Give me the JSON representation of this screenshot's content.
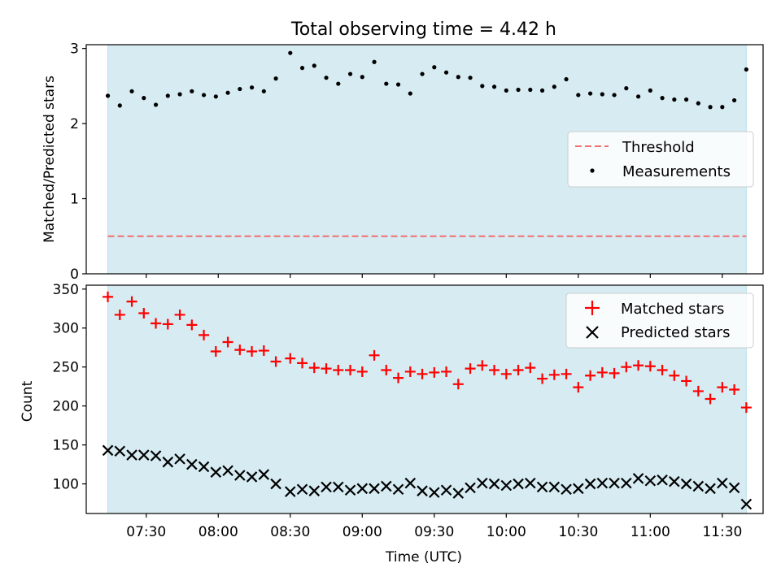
{
  "figure": {
    "title": "Total observing time = 4.42 h"
  },
  "chart_data": [
    {
      "type": "scatter",
      "panel": "top",
      "ylabel": "Matched/Predicted stars",
      "xlabel": "",
      "x_range": [
        "07:05",
        "11:47"
      ],
      "ylim": [
        0,
        3.05
      ],
      "yticks": [
        0,
        1,
        2,
        3
      ],
      "shaded_span": [
        "07:14",
        "11:40"
      ],
      "threshold": 0.5,
      "legend_position": "center-right",
      "legend": [
        "Threshold",
        "Measurements"
      ],
      "x": [
        "07:14",
        "07:19",
        "07:24",
        "07:29",
        "07:34",
        "07:39",
        "07:44",
        "07:49",
        "07:54",
        "07:59",
        "08:04",
        "08:09",
        "08:14",
        "08:19",
        "08:24",
        "08:30",
        "08:35",
        "08:40",
        "08:45",
        "08:50",
        "08:55",
        "09:00",
        "09:05",
        "09:10",
        "09:15",
        "09:20",
        "09:25",
        "09:30",
        "09:35",
        "09:40",
        "09:45",
        "09:50",
        "09:55",
        "10:00",
        "10:05",
        "10:10",
        "10:15",
        "10:20",
        "10:25",
        "10:30",
        "10:35",
        "10:40",
        "10:45",
        "10:50",
        "10:55",
        "11:00",
        "11:05",
        "11:10",
        "11:15",
        "11:20",
        "11:25",
        "11:30",
        "11:35",
        "11:40"
      ],
      "series": [
        {
          "name": "Measurements",
          "values": [
            2.37,
            2.24,
            2.43,
            2.34,
            2.25,
            2.37,
            2.39,
            2.43,
            2.38,
            2.36,
            2.41,
            2.46,
            2.48,
            2.43,
            2.6,
            2.94,
            2.74,
            2.77,
            2.61,
            2.53,
            2.66,
            2.62,
            2.82,
            2.53,
            2.52,
            2.4,
            2.66,
            2.75,
            2.68,
            2.62,
            2.61,
            2.5,
            2.49,
            2.44,
            2.45,
            2.45,
            2.44,
            2.49,
            2.59,
            2.38,
            2.4,
            2.39,
            2.38,
            2.47,
            2.36,
            2.44,
            2.34,
            2.32,
            2.32,
            2.27,
            2.22,
            2.22,
            2.31,
            2.72
          ]
        }
      ]
    },
    {
      "type": "scatter",
      "panel": "bottom",
      "ylabel": "Count",
      "xlabel": "Time (UTC)",
      "x_range": [
        "07:05",
        "11:47"
      ],
      "ylim": [
        62,
        355
      ],
      "yticks": [
        100,
        150,
        200,
        250,
        300,
        350
      ],
      "xticks": [
        "07:30",
        "08:00",
        "08:30",
        "09:00",
        "09:30",
        "10:00",
        "10:30",
        "11:00",
        "11:30"
      ],
      "legend_position": "top-right",
      "x": [
        "07:14",
        "07:19",
        "07:24",
        "07:29",
        "07:34",
        "07:39",
        "07:44",
        "07:49",
        "07:54",
        "07:59",
        "08:04",
        "08:09",
        "08:14",
        "08:19",
        "08:24",
        "08:30",
        "08:35",
        "08:40",
        "08:45",
        "08:50",
        "08:55",
        "09:00",
        "09:05",
        "09:10",
        "09:15",
        "09:20",
        "09:25",
        "09:30",
        "09:35",
        "09:40",
        "09:45",
        "09:50",
        "09:55",
        "10:00",
        "10:05",
        "10:10",
        "10:15",
        "10:20",
        "10:25",
        "10:30",
        "10:35",
        "10:40",
        "10:45",
        "10:50",
        "10:55",
        "11:00",
        "11:05",
        "11:10",
        "11:15",
        "11:20",
        "11:25",
        "11:30",
        "11:35",
        "11:40"
      ],
      "series": [
        {
          "name": "Matched stars",
          "marker": "+",
          "color": "#ff0000",
          "values": [
            340,
            317,
            334,
            319,
            306,
            305,
            317,
            304,
            291,
            270,
            282,
            272,
            270,
            271,
            257,
            261,
            255,
            249,
            248,
            246,
            246,
            244,
            265,
            246,
            236,
            244,
            241,
            243,
            244,
            228,
            248,
            252,
            246,
            241,
            246,
            249,
            235,
            240,
            241,
            224,
            239,
            243,
            242,
            250,
            252,
            251,
            246,
            239,
            232,
            219,
            209,
            224,
            221,
            198
          ]
        },
        {
          "name": "Predicted stars",
          "marker": "x",
          "color": "#000000",
          "values": [
            143,
            142,
            137,
            137,
            136,
            128,
            132,
            125,
            122,
            115,
            117,
            111,
            109,
            112,
            100,
            90,
            93,
            91,
            96,
            96,
            92,
            94,
            94,
            97,
            93,
            101,
            91,
            89,
            92,
            88,
            95,
            101,
            100,
            98,
            100,
            101,
            96,
            96,
            93,
            94,
            100,
            101,
            101,
            101,
            107,
            104,
            105,
            103,
            100,
            97,
            94,
            101,
            95,
            74
          ]
        }
      ]
    }
  ]
}
